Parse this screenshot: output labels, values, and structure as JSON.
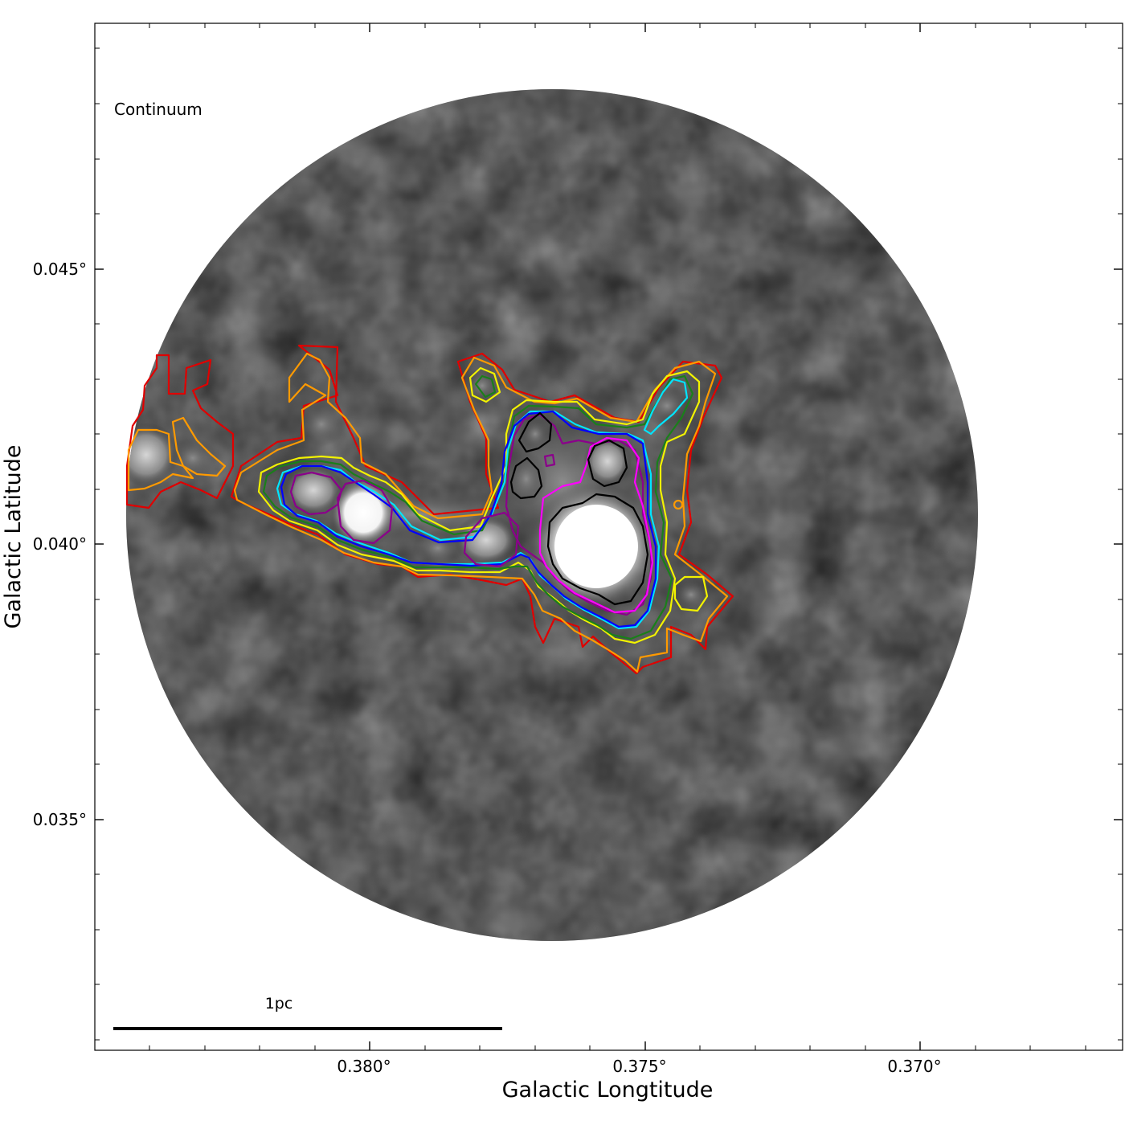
{
  "figure": {
    "panel_label": "Continuum",
    "xlabel": "Galactic Longtitude",
    "ylabel": "Galactic Latitude",
    "scalebar_label": "1pc",
    "x_ticks": [
      "0.380°",
      "0.375°",
      "0.370°"
    ],
    "y_ticks": [
      "0.045°",
      "0.040°",
      "0.035°"
    ],
    "colormap": "grayscale",
    "contour_colors": {
      "red": "#e00000",
      "orange": "#ff9a00",
      "yellow": "#f2f200",
      "green": "#1a7f1a",
      "cyan": "#00e5ff",
      "blue": "#0000ff",
      "purple": "#8b008b",
      "magenta": "#ff00ff",
      "black": "#000000"
    }
  }
}
